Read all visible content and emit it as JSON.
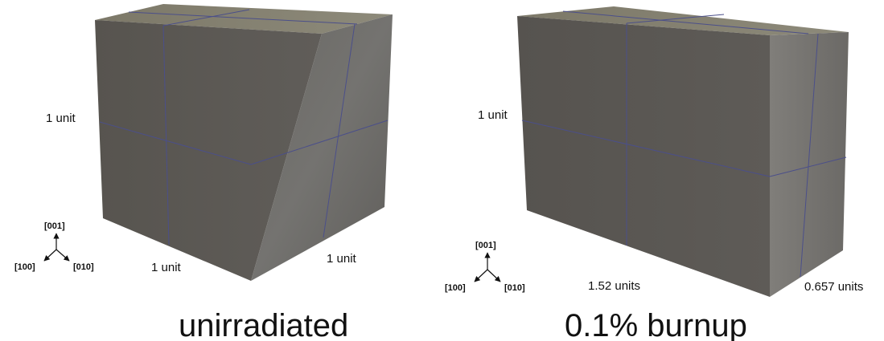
{
  "panels": [
    {
      "caption": "unirradiated",
      "labels": {
        "height": "1 unit",
        "front_width": "1 unit",
        "side_width": "1 unit"
      }
    },
    {
      "caption": "0.1% burnup",
      "labels": {
        "height": "1 unit",
        "front_width": "1.52 units",
        "side_width": "0.657 units"
      }
    }
  ],
  "axes": {
    "z": "[001]",
    "x": "[100]",
    "y": "[010]"
  },
  "colors": {
    "front_face": "#5d5a57",
    "side_face": "#6e6c68",
    "top_face": "#84806f",
    "divider_lines": "#4b4f8a"
  }
}
